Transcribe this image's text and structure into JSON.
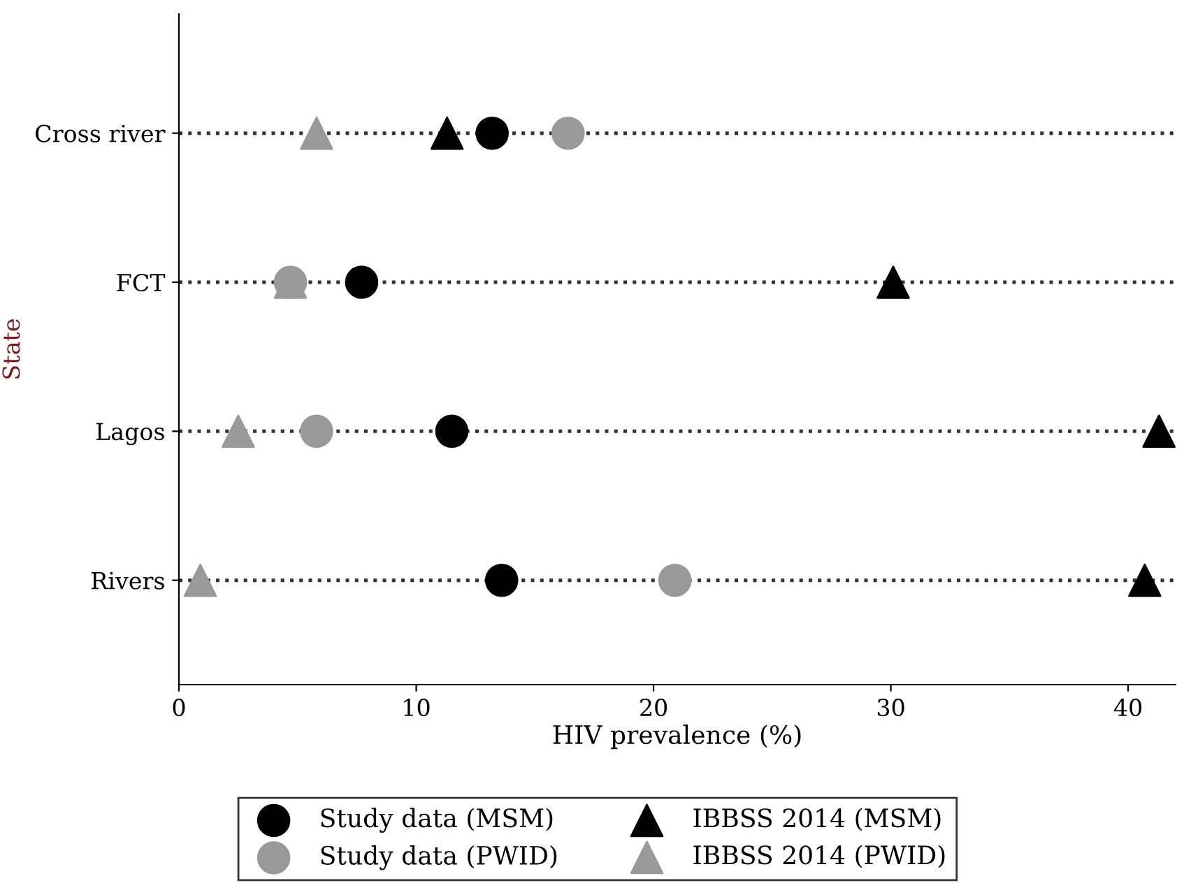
{
  "chart_data": {
    "type": "scatter",
    "orientation": "horizontal",
    "xlabel": "HIV prevalence (%)",
    "ylabel": "State",
    "categories": [
      "Cross river",
      "FCT",
      "Lagos",
      "Rivers"
    ],
    "xlim": [
      0,
      42
    ],
    "xticks": [
      0,
      10,
      20,
      30,
      40
    ],
    "grid": "y",
    "line_style": "dotted",
    "legend": "bottom",
    "series": [
      {
        "name": "Study data (MSM)",
        "color": "#000000",
        "marker": "circle",
        "values": [
          13.2,
          7.7,
          11.5,
          13.6
        ]
      },
      {
        "name": "Study data (PWID)",
        "color": "#999999",
        "marker": "circle",
        "values": [
          16.4,
          4.7,
          5.8,
          20.9
        ]
      },
      {
        "name": "IBBSS 2014 (MSM)",
        "color": "#000000",
        "marker": "triangle",
        "values": [
          11.3,
          30.1,
          41.3,
          40.7
        ]
      },
      {
        "name": "IBBSS 2014 (PWID)",
        "color": "#999999",
        "marker": "triangle",
        "values": [
          5.8,
          4.7,
          2.5,
          0.9
        ]
      }
    ]
  }
}
